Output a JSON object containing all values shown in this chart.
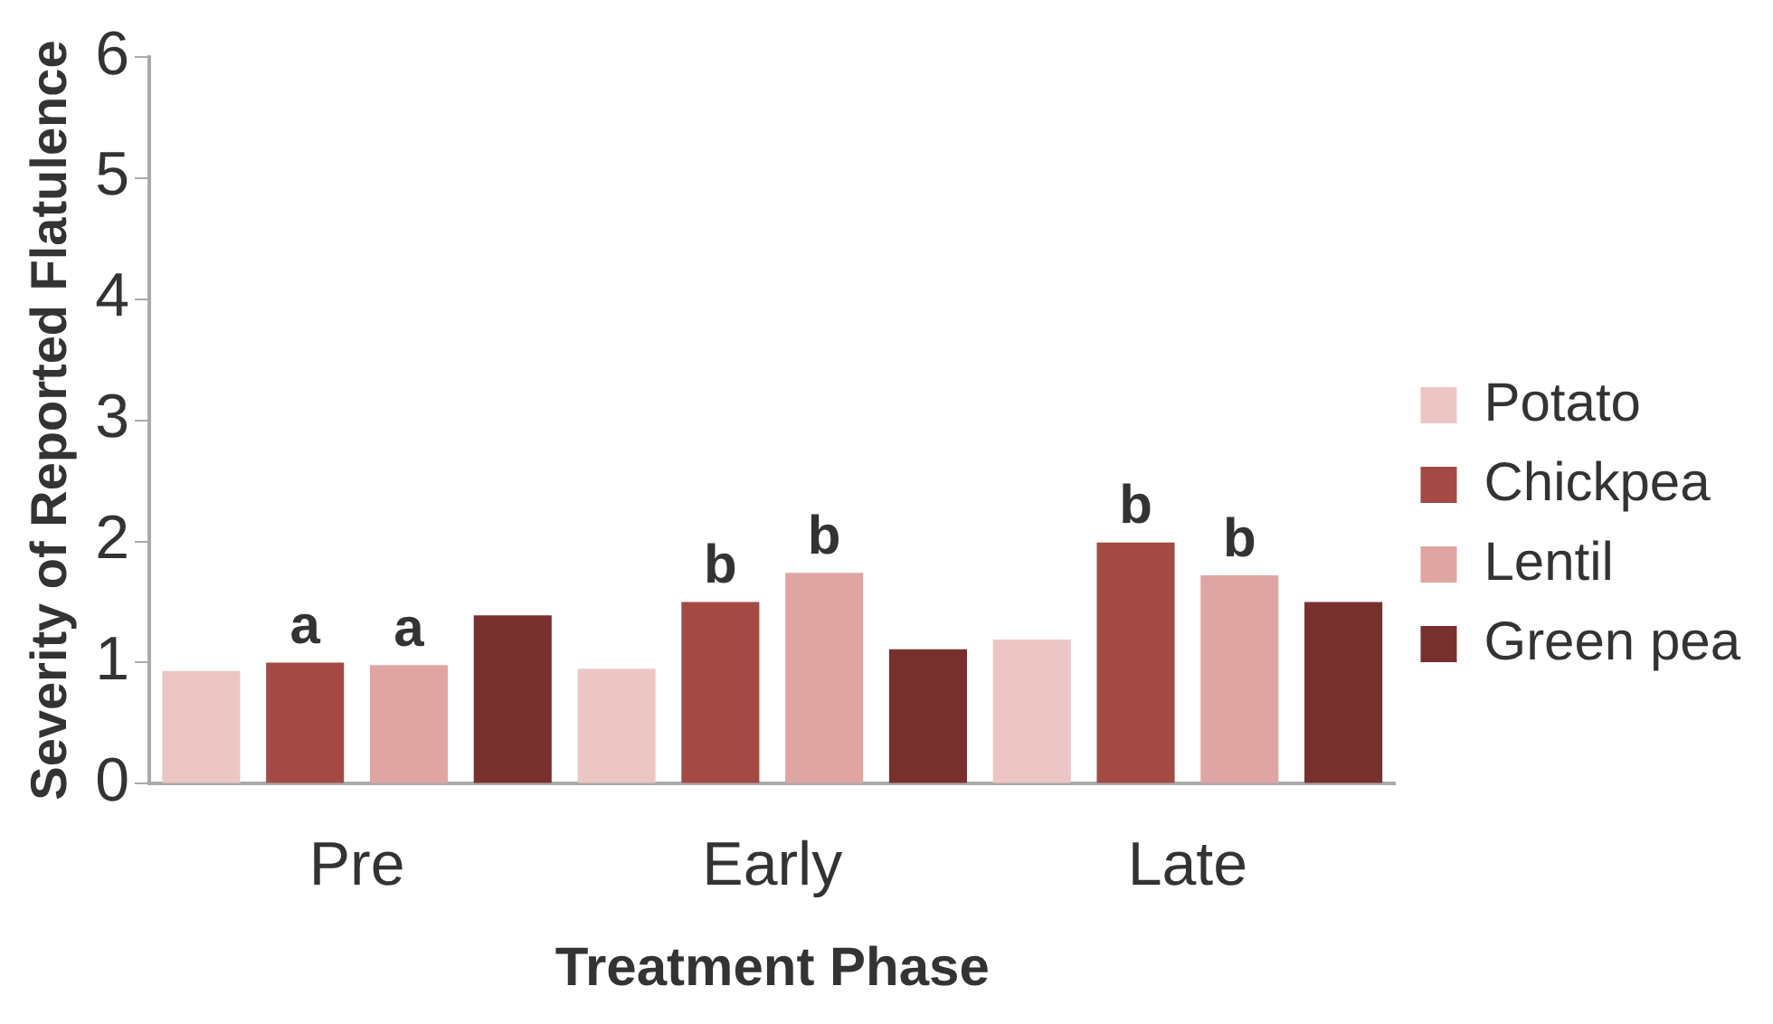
{
  "chart_data": {
    "type": "bar",
    "xlabel": "Treatment Phase",
    "ylabel": "Severity of Reported Flatulence",
    "categories": [
      "Pre",
      "Early",
      "Late"
    ],
    "series": [
      {
        "name": "Potato",
        "color": "#ecc6c4",
        "values": [
          0.93,
          0.95,
          1.19
        ]
      },
      {
        "name": "Chickpea",
        "color": "#a34a44",
        "values": [
          1.0,
          1.5,
          1.99
        ],
        "value_labels": [
          "a",
          "b",
          "b"
        ]
      },
      {
        "name": "Lentil",
        "color": "#e0a5a3",
        "values": [
          0.98,
          1.74,
          1.72
        ],
        "value_labels": [
          "a",
          "b",
          "b"
        ]
      },
      {
        "name": "Green pea",
        "color": "#78302e",
        "values": [
          1.39,
          1.11,
          1.5
        ]
      }
    ],
    "ylim": [
      0,
      6
    ],
    "yticks": [
      0,
      1,
      2,
      3,
      4,
      5,
      6
    ],
    "grid": false,
    "legend": "right"
  }
}
